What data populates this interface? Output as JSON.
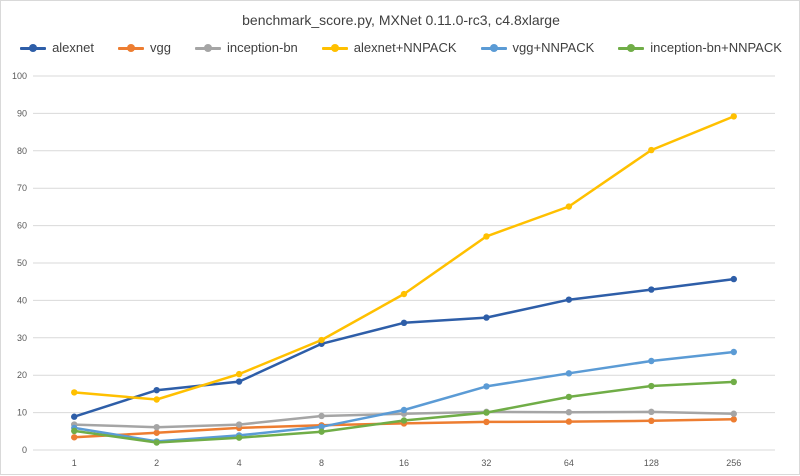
{
  "chart_data": {
    "type": "line",
    "title": "benchmark_score.py,  MXNet 0.11.0-rc3, c4.8xlarge",
    "xlabel": "",
    "ylabel": "",
    "categories": [
      "1",
      "2",
      "4",
      "8",
      "16",
      "32",
      "64",
      "128",
      "256"
    ],
    "ylim": [
      0,
      100
    ],
    "yticks": [
      0,
      10,
      20,
      30,
      40,
      50,
      60,
      70,
      80,
      90,
      100
    ],
    "grid": true,
    "legend_position": "top",
    "series": [
      {
        "name": "alexnet",
        "color": "#2e5ea8",
        "values": [
          8.9,
          16.0,
          18.3,
          28.4,
          34.0,
          35.4,
          40.2,
          42.9,
          45.7
        ]
      },
      {
        "name": "vgg",
        "color": "#ed7d31",
        "values": [
          3.4,
          4.6,
          5.9,
          6.6,
          7.1,
          7.5,
          7.6,
          7.8,
          8.2
        ]
      },
      {
        "name": "inception-bn",
        "color": "#a5a5a5",
        "values": [
          6.8,
          6.1,
          6.8,
          9.1,
          9.7,
          10.2,
          10.1,
          10.2,
          9.7
        ]
      },
      {
        "name": "alexnet+NNPACK",
        "color": "#ffc000",
        "values": [
          15.4,
          13.5,
          20.3,
          29.4,
          41.7,
          57.1,
          65.1,
          80.2,
          89.2
        ]
      },
      {
        "name": "vgg+NNPACK",
        "color": "#5b9bd5",
        "values": [
          5.9,
          2.3,
          3.9,
          6.2,
          10.7,
          17.0,
          20.5,
          23.8,
          26.2
        ]
      },
      {
        "name": "inception-bn+NNPACK",
        "color": "#70ad47",
        "values": [
          5.1,
          2.0,
          3.3,
          4.9,
          7.9,
          10.0,
          14.2,
          17.1,
          18.2
        ]
      }
    ]
  }
}
